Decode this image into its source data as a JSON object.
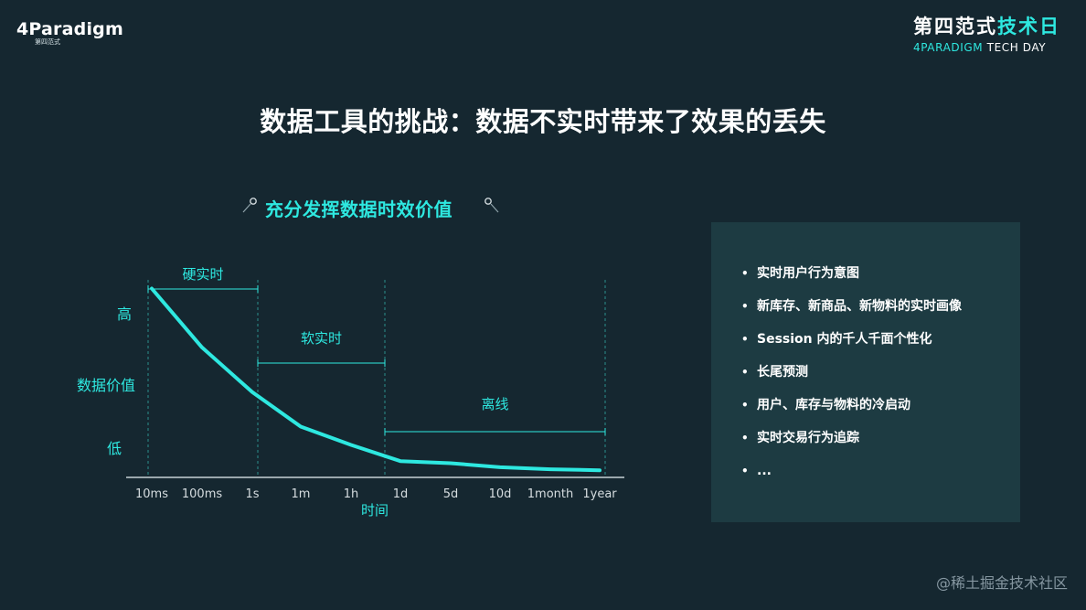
{
  "header": {
    "logo_text": "4Paradigm",
    "logo_sub": "第四范式",
    "event_cn_part1": "第四范式",
    "event_cn_part2": "技术日",
    "event_en_part1": "4PARADIGM",
    "event_en_part2": " TECH DAY"
  },
  "title": "数据工具的挑战：数据不实时带来了效果的丢失",
  "subtitle": "充分发挥数据时效价值",
  "chart_data": {
    "type": "line",
    "xlabel": "时间",
    "ylabel": "数据价值",
    "y_high_label": "高",
    "y_low_label": "低",
    "categories": [
      "10ms",
      "100ms",
      "1s",
      "1m",
      "1h",
      "1d",
      "5d",
      "10d",
      "1month",
      "1year"
    ],
    "series": [
      {
        "values": [
          0.93,
          0.64,
          0.42,
          0.25,
          0.16,
          0.08,
          0.07,
          0.05,
          0.04,
          0.035
        ]
      }
    ],
    "ylim": [
      0,
      1
    ],
    "regions": [
      {
        "label": "硬实时",
        "from": "10ms",
        "to": "1s"
      },
      {
        "label": "软实时",
        "from": "1s",
        "to": "1d"
      },
      {
        "label": "离线",
        "from": "1d",
        "to": "1year"
      }
    ],
    "line_color": "#2ee8e0",
    "accent_color": "#2ee8e0"
  },
  "panel": {
    "items": [
      "实时用户行为意图",
      "新库存、新商品、新物料的实时画像",
      "Session 内的千人千面个性化",
      "长尾预测",
      "用户、库存与物料的冷启动",
      "实时交易行为追踪",
      "..."
    ]
  },
  "watermark": "@稀土掘金技术社区"
}
